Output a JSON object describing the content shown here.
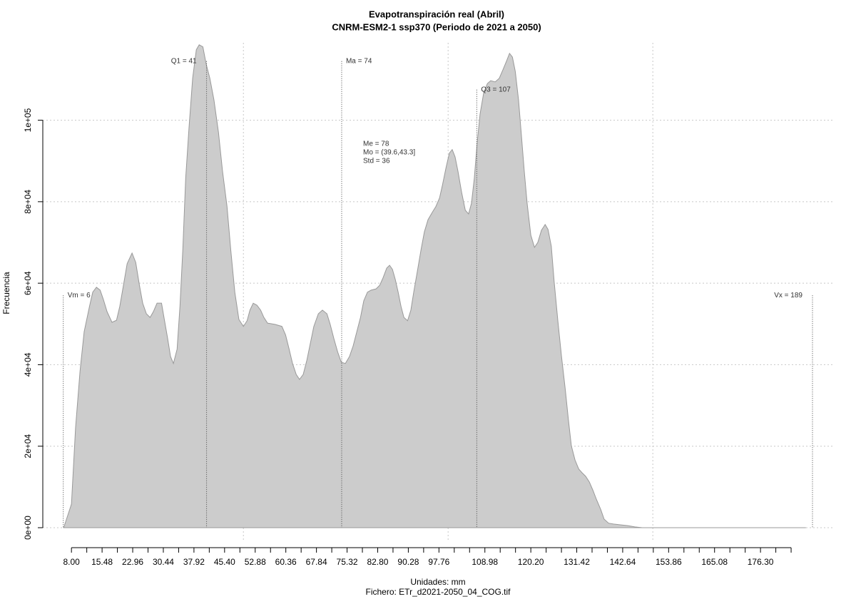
{
  "chart_data": {
    "type": "area",
    "title": "Evapotranspiración real (Abril)",
    "subtitle": "CNRM-ESM2-1 ssp370 (Periodo de 2021 a 2050)",
    "x_label": "Unidades: mm",
    "file_label": "Fichero: ETr_d2021-2050_04_COG.tif",
    "y_label": "Frecuencia",
    "color": "#cccccc",
    "line_color": "#999999",
    "grid": true,
    "xlim": [
      1,
      194.4
    ],
    "ylim": [
      0,
      119000
    ],
    "xticks": [
      {
        "value": 8,
        "label": "8.00"
      },
      15.48,
      22.96,
      30.44,
      37.92,
      {
        "value": 45.4,
        "label": "45.40"
      },
      52.88,
      60.36,
      67.84,
      75.32,
      {
        "value": 82.8,
        "label": "82.80"
      },
      90.28,
      97.76,
      108.98,
      {
        "value": 120.2,
        "label": "120.20"
      },
      131.42,
      142.64,
      153.86,
      165.08,
      {
        "value": 176.3,
        "label": "176.30"
      }
    ],
    "xticks_minor": [
      11.74,
      19.22,
      26.7,
      34.18,
      41.66,
      49.14,
      56.62,
      64.1,
      71.58,
      79.06,
      86.54,
      94.02,
      101.5,
      105.24,
      112.72,
      116.46,
      123.94,
      127.68,
      135.16,
      138.9,
      146.38,
      150.12,
      157.6,
      161.34,
      168.82,
      172.56,
      180.04,
      183.78
    ],
    "x_grid": [
      50,
      100,
      150
    ],
    "yticks": [
      {
        "value": 0,
        "label": "0e+00"
      },
      {
        "value": 20000,
        "label": "2e+04"
      },
      {
        "value": 40000,
        "label": "4e+04"
      },
      {
        "value": 60000,
        "label": "6e+04"
      },
      {
        "value": 80000,
        "label": "8e+04"
      },
      {
        "value": 100000,
        "label": "1e+05"
      }
    ],
    "x": [
      6.1,
      8.0,
      9.0,
      10.1,
      11.1,
      12.4,
      13.2,
      14.1,
      15.0,
      15.8,
      16.7,
      17.9,
      19.0,
      19.8,
      20.7,
      21.6,
      22.8,
      23.7,
      24.6,
      25.4,
      26.3,
      27.2,
      28.0,
      28.9,
      30.0,
      30.6,
      31.5,
      32.2,
      32.9,
      33.8,
      34.5,
      35.2,
      35.9,
      36.7,
      37.6,
      38.5,
      39.2,
      40.1,
      40.9,
      41.8,
      42.8,
      43.9,
      44.9,
      46.0,
      46.9,
      47.9,
      48.9,
      50.0,
      50.9,
      51.6,
      52.4,
      53.3,
      54.2,
      55.0,
      55.9,
      57.7,
      59.4,
      60.3,
      61.1,
      62.0,
      62.9,
      63.7,
      64.6,
      65.5,
      66.4,
      67.2,
      68.3,
      69.3,
      70.4,
      71.2,
      72.1,
      73.0,
      73.9,
      74.9,
      75.9,
      76.8,
      77.7,
      78.6,
      79.4,
      80.3,
      81.2,
      82.4,
      83.3,
      84.1,
      85.0,
      85.7,
      86.4,
      87.1,
      87.8,
      88.5,
      89.2,
      90.1,
      90.9,
      91.6,
      92.5,
      93.4,
      94.2,
      95.1,
      96.2,
      97.0,
      97.9,
      98.6,
      99.5,
      100.3,
      101.0,
      101.7,
      102.4,
      103.3,
      104.2,
      105.0,
      105.7,
      106.4,
      107.1,
      107.8,
      108.7,
      109.6,
      110.4,
      111.5,
      112.5,
      113.4,
      114.3,
      115.0,
      115.7,
      116.4,
      117.2,
      117.9,
      118.6,
      119.3,
      120.2,
      121.1,
      121.9,
      122.8,
      123.7,
      124.4,
      125.2,
      125.9,
      126.8,
      127.7,
      128.6,
      129.4,
      130.1,
      131.0,
      131.9,
      132.7,
      133.6,
      134.5,
      135.4,
      136.2,
      137.3,
      138.1,
      139.2,
      140.4,
      142.1,
      143.9,
      145.6,
      147.4,
      150.9,
      187.4
    ],
    "values": [
      0,
      5800,
      24500,
      38500,
      48100,
      54300,
      57800,
      59000,
      58300,
      56000,
      53000,
      50400,
      50900,
      54300,
      59500,
      64800,
      67400,
      65100,
      59500,
      55100,
      52500,
      51600,
      53000,
      55100,
      55100,
      51600,
      46400,
      42000,
      40300,
      43800,
      54300,
      68300,
      85800,
      98000,
      110300,
      117300,
      118500,
      118000,
      113800,
      110300,
      105000,
      97100,
      87500,
      78800,
      68300,
      57800,
      51100,
      49400,
      50800,
      53400,
      55100,
      54600,
      53400,
      51600,
      50200,
      49900,
      49400,
      47300,
      44100,
      40300,
      37600,
      36400,
      37600,
      41100,
      45500,
      49400,
      52500,
      53400,
      52500,
      49900,
      46400,
      43200,
      40600,
      40300,
      42000,
      44600,
      48100,
      51600,
      55700,
      57800,
      58300,
      58600,
      59500,
      61300,
      63700,
      64400,
      63400,
      60900,
      57800,
      54300,
      51600,
      50800,
      53400,
      57800,
      63000,
      68300,
      72600,
      75600,
      77500,
      78800,
      80900,
      84000,
      88400,
      91900,
      92800,
      91000,
      87500,
      82300,
      77900,
      77000,
      79600,
      85800,
      94500,
      101500,
      106800,
      109000,
      109700,
      109400,
      110300,
      112400,
      114600,
      116400,
      115500,
      112000,
      105000,
      96300,
      87500,
      79600,
      71800,
      68800,
      70000,
      73000,
      74400,
      73200,
      69100,
      60400,
      50800,
      42000,
      34100,
      26300,
      20100,
      16600,
      14400,
      13500,
      12600,
      11200,
      9100,
      7000,
      4400,
      2100,
      1100,
      900,
      700,
      500,
      200,
      0,
      0,
      0
    ],
    "annotations": [
      {
        "label": "Vm = 6",
        "x": 6,
        "y": 57000,
        "side": "right"
      },
      {
        "label": "Q1 = 41",
        "x": 41,
        "y": 114500,
        "side": "left"
      },
      {
        "label": "Ma = 74",
        "x": 74,
        "y": 114500,
        "side": "right"
      },
      {
        "label": "Q3 = 107",
        "x": 107,
        "y": 107500,
        "side": "right"
      },
      {
        "label": "Vx = 189",
        "x": 189,
        "y": 57000,
        "side": "left"
      }
    ],
    "stats": [
      "Me = 78",
      "Mo = (39.6,43.3]",
      "Std = 36"
    ]
  }
}
